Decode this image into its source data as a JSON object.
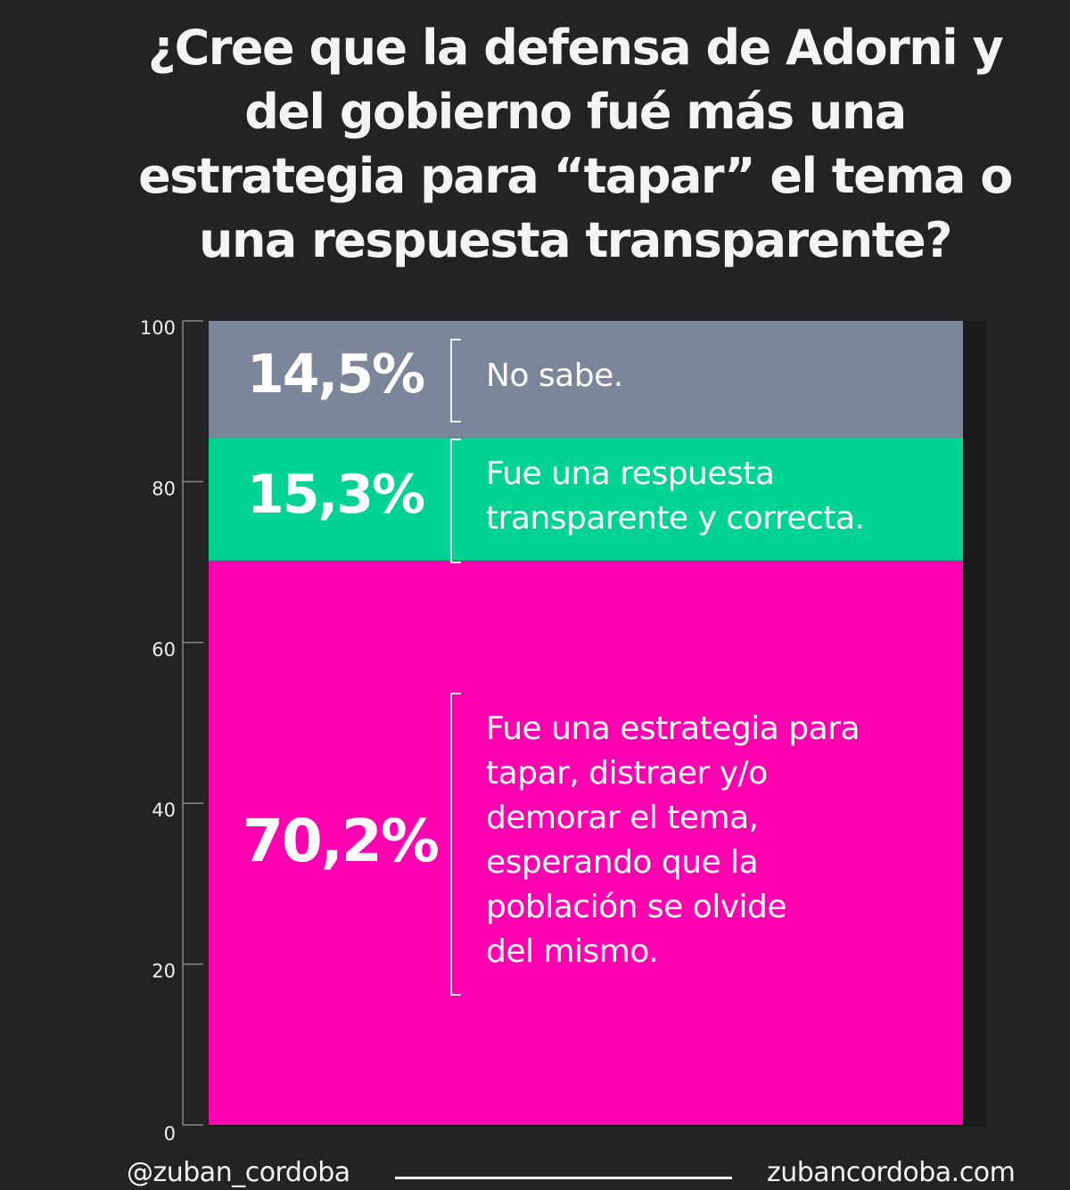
{
  "chart_data": {
    "type": "bar",
    "stacked": true,
    "title": "¿Cree que la defensa de Adorni y del gobierno fué más una estrategia para “tapar” el tema o una respuesta transparente?",
    "ylim": [
      0,
      100
    ],
    "yticks": [
      "0",
      "20",
      "40",
      "60",
      "80",
      "100"
    ],
    "segments": [
      {
        "name": "Fue una estrategia para tapar, distraer y/o demorar el tema, esperando que la población se olvide del mismo.",
        "value": 70.2,
        "label": "70,2%",
        "color": "#ff00b0",
        "lines": [
          "Fue una estrategia para",
          "tapar, distraer y/o",
          "demorar el tema,",
          "esperando que la",
          "población se olvide",
          "del mismo."
        ]
      },
      {
        "name": "Fue una respuesta transparente y correcta.",
        "value": 15.3,
        "label": "15,3%",
        "color": "#00d391",
        "lines": [
          "Fue una respuesta",
          "transparente y correcta."
        ]
      },
      {
        "name": "No sabe.",
        "value": 14.5,
        "label": "14,5%",
        "color": "#7b869b",
        "lines": [
          "No sabe."
        ]
      }
    ]
  },
  "footer": {
    "handle": "@zuban_cordoba",
    "site": "zubancordoba.com"
  }
}
